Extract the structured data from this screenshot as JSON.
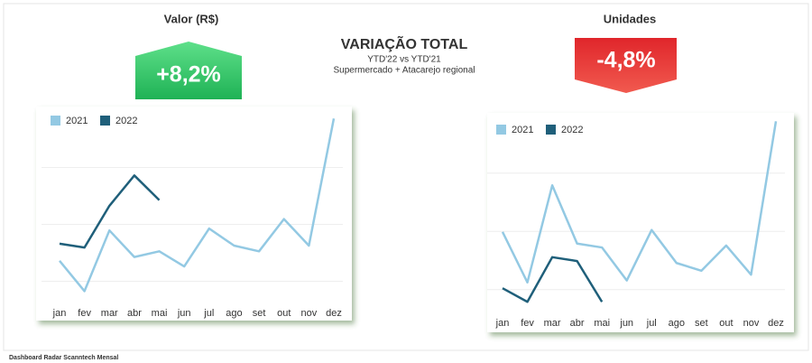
{
  "header": {
    "title": "VARIAÇÃO TOTAL",
    "subtitle": "YTD'22 vs YTD'21",
    "scope": "Supermercado +  Atacarejo regional"
  },
  "panels": [
    {
      "title": "Valor (R$)",
      "kpi": "+8,2%"
    },
    {
      "title": "Unidades",
      "kpi": "-4,8%"
    }
  ],
  "footer": "Dashboard Radar Scanntech Mensal",
  "chart_data": [
    {
      "type": "line",
      "categories": [
        "jan",
        "fev",
        "mar",
        "abr",
        "mai",
        "jun",
        "jul",
        "ago",
        "set",
        "out",
        "nov",
        "dez"
      ],
      "ylim": [
        0,
        100
      ],
      "series": [
        {
          "name": "2021",
          "color": "#93c9e3",
          "values": [
            22,
            6,
            38,
            24,
            27,
            19,
            39,
            30,
            27,
            44,
            30,
            97
          ]
        },
        {
          "name": "2022",
          "color": "#1f5f7a",
          "values": [
            31,
            29,
            51,
            67,
            54,
            null,
            null,
            null,
            null,
            null,
            null,
            null
          ]
        }
      ]
    },
    {
      "type": "line",
      "categories": [
        "jan",
        "fev",
        "mar",
        "abr",
        "mai",
        "jun",
        "jul",
        "ago",
        "set",
        "out",
        "nov",
        "dez"
      ],
      "ylim": [
        0,
        100
      ],
      "series": [
        {
          "name": "2021",
          "color": "#93c9e3",
          "values": [
            41,
            15,
            65,
            35,
            33,
            16,
            42,
            25,
            21,
            34,
            19,
            98
          ]
        },
        {
          "name": "2022",
          "color": "#1f5f7a",
          "values": [
            12,
            5,
            28,
            26,
            5,
            null,
            null,
            null,
            null,
            null,
            null,
            null
          ]
        }
      ]
    }
  ]
}
